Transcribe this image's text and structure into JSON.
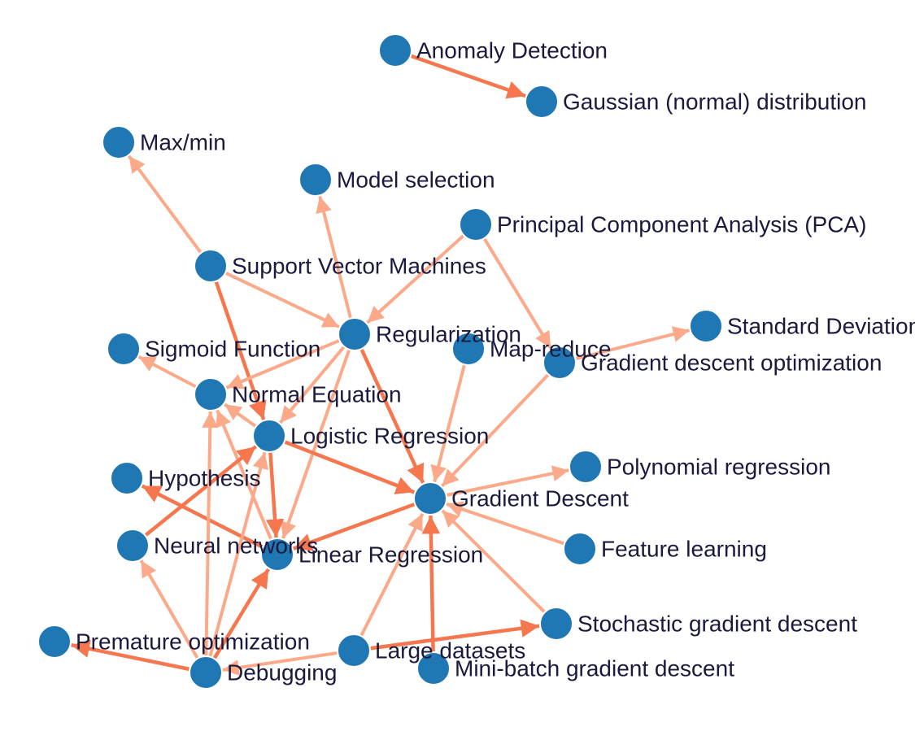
{
  "colors": {
    "node": "#1f77b4",
    "edge_light": "#fca98a",
    "edge_dark": "#f6764e",
    "label": "#1a1a3e"
  },
  "graph": {
    "nodes": [
      {
        "id": "anomaly",
        "label": "Anomaly Detection"
      },
      {
        "id": "gaussian",
        "label": "Gaussian (normal) distribution"
      },
      {
        "id": "maxmin",
        "label": "Max/min"
      },
      {
        "id": "model_selection",
        "label": "Model selection"
      },
      {
        "id": "pca",
        "label": "Principal Component Analysis (PCA)"
      },
      {
        "id": "svm",
        "label": "Support Vector Machines"
      },
      {
        "id": "stddev",
        "label": "Standard Deviation"
      },
      {
        "id": "regularization",
        "label": "Regularization"
      },
      {
        "id": "mapreduce",
        "label": "Map-reduce"
      },
      {
        "id": "sigmoid",
        "label": "Sigmoid Function"
      },
      {
        "id": "gd_opt",
        "label": "Gradient descent optimization"
      },
      {
        "id": "normal_eq",
        "label": "Normal Equation"
      },
      {
        "id": "logistic",
        "label": "Logistic Regression"
      },
      {
        "id": "polynomial",
        "label": "Polynomial regression"
      },
      {
        "id": "hypothesis",
        "label": "Hypothesis"
      },
      {
        "id": "gd",
        "label": "Gradient Descent"
      },
      {
        "id": "neural",
        "label": "Neural networks"
      },
      {
        "id": "linear",
        "label": "Linear Regression"
      },
      {
        "id": "feature_learning",
        "label": "Feature learning"
      },
      {
        "id": "sgd",
        "label": "Stochastic gradient descent"
      },
      {
        "id": "premature",
        "label": "Premature optimization"
      },
      {
        "id": "large_datasets",
        "label": "Large datasets"
      },
      {
        "id": "debugging",
        "label": "Debugging"
      },
      {
        "id": "minibatch",
        "label": "Mini-batch gradient descent"
      }
    ],
    "edges": [
      {
        "from": "anomaly",
        "to": "gaussian",
        "tone": "dark"
      },
      {
        "from": "svm",
        "to": "maxmin",
        "tone": "light"
      },
      {
        "from": "svm",
        "to": "regularization",
        "tone": "light"
      },
      {
        "from": "svm",
        "to": "logistic",
        "tone": "dark"
      },
      {
        "from": "regularization",
        "to": "model_selection",
        "tone": "light"
      },
      {
        "from": "pca",
        "to": "regularization",
        "tone": "light"
      },
      {
        "from": "pca",
        "to": "gd_opt",
        "tone": "light"
      },
      {
        "from": "gd_opt",
        "to": "stddev",
        "tone": "light"
      },
      {
        "from": "regularization",
        "to": "normal_eq",
        "tone": "light"
      },
      {
        "from": "regularization",
        "to": "logistic",
        "tone": "light"
      },
      {
        "from": "regularization",
        "to": "gd",
        "tone": "dark"
      },
      {
        "from": "regularization",
        "to": "linear",
        "tone": "light"
      },
      {
        "from": "normal_eq",
        "to": "sigmoid",
        "tone": "light"
      },
      {
        "from": "logistic",
        "to": "normal_eq",
        "tone": "light"
      },
      {
        "from": "logistic",
        "to": "gd",
        "tone": "dark"
      },
      {
        "from": "logistic",
        "to": "linear",
        "tone": "dark"
      },
      {
        "from": "mapreduce",
        "to": "gd",
        "tone": "light"
      },
      {
        "from": "gd_opt",
        "to": "gd",
        "tone": "light"
      },
      {
        "from": "gd",
        "to": "polynomial",
        "tone": "light"
      },
      {
        "from": "feature_learning",
        "to": "gd",
        "tone": "light"
      },
      {
        "from": "sgd",
        "to": "gd",
        "tone": "light"
      },
      {
        "from": "minibatch",
        "to": "gd",
        "tone": "dark"
      },
      {
        "from": "large_datasets",
        "to": "gd",
        "tone": "light"
      },
      {
        "from": "gd",
        "to": "linear",
        "tone": "dark"
      },
      {
        "from": "linear",
        "to": "hypothesis",
        "tone": "dark"
      },
      {
        "from": "linear",
        "to": "normal_eq",
        "tone": "light"
      },
      {
        "from": "neural",
        "to": "logistic",
        "tone": "dark"
      },
      {
        "from": "debugging",
        "to": "neural",
        "tone": "light"
      },
      {
        "from": "debugging",
        "to": "premature",
        "tone": "dark"
      },
      {
        "from": "debugging",
        "to": "normal_eq",
        "tone": "light"
      },
      {
        "from": "debugging",
        "to": "logistic",
        "tone": "light"
      },
      {
        "from": "debugging",
        "to": "linear",
        "tone": "dark"
      },
      {
        "from": "large_datasets",
        "to": "debugging",
        "tone": "light"
      },
      {
        "from": "large_datasets",
        "to": "sgd",
        "tone": "dark"
      }
    ]
  }
}
